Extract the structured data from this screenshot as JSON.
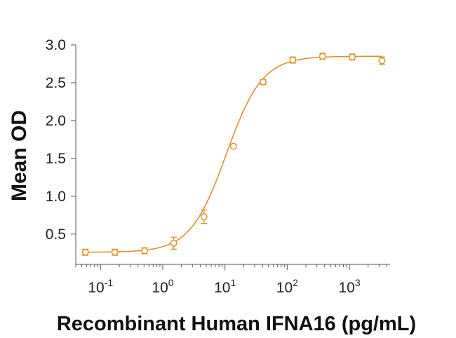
{
  "chart_data": {
    "type": "scatter",
    "xlabel": "Recombinant Human IFNA16 (pg/mL)",
    "ylabel": "Mean OD",
    "x_scale": "log",
    "xlim": [
      0.04,
      4500
    ],
    "ylim": [
      0.1,
      3.0
    ],
    "yticks": [
      {
        "value": 0.5,
        "label": "0.5"
      },
      {
        "value": 1.0,
        "label": "1.0"
      },
      {
        "value": 1.5,
        "label": "1.5"
      },
      {
        "value": 2.0,
        "label": "2.0"
      },
      {
        "value": 2.5,
        "label": "2.5"
      },
      {
        "value": 3.0,
        "label": "3.0"
      }
    ],
    "xticks": [
      {
        "value": 0.1,
        "base": "10",
        "exp": "-1"
      },
      {
        "value": 1,
        "base": "10",
        "exp": "0"
      },
      {
        "value": 10,
        "base": "10",
        "exp": "1"
      },
      {
        "value": 100,
        "base": "10",
        "exp": "2"
      },
      {
        "value": 1000,
        "base": "10",
        "exp": "3"
      }
    ],
    "grid": false,
    "color": "#E8891A",
    "series": [
      {
        "points": [
          {
            "x": 0.057,
            "y": 0.26,
            "err": 0.04
          },
          {
            "x": 0.17,
            "y": 0.26,
            "err": 0.04
          },
          {
            "x": 0.51,
            "y": 0.28,
            "err": 0.04
          },
          {
            "x": 1.5,
            "y": 0.38,
            "err": 0.08
          },
          {
            "x": 4.6,
            "y": 0.73,
            "err": 0.09
          },
          {
            "x": 13.7,
            "y": 1.66,
            "err": 0.02
          },
          {
            "x": 41,
            "y": 2.51,
            "err": 0.03
          },
          {
            "x": 123,
            "y": 2.8,
            "err": 0.04
          },
          {
            "x": 370,
            "y": 2.85,
            "err": 0.04
          },
          {
            "x": 1111,
            "y": 2.84,
            "err": 0.04
          },
          {
            "x": 3333,
            "y": 2.79,
            "err": 0.05
          }
        ],
        "fit": {
          "model": "4PL",
          "bottom": 0.26,
          "top": 2.85,
          "ec50": 10.5,
          "hill": 1.5
        }
      }
    ]
  }
}
